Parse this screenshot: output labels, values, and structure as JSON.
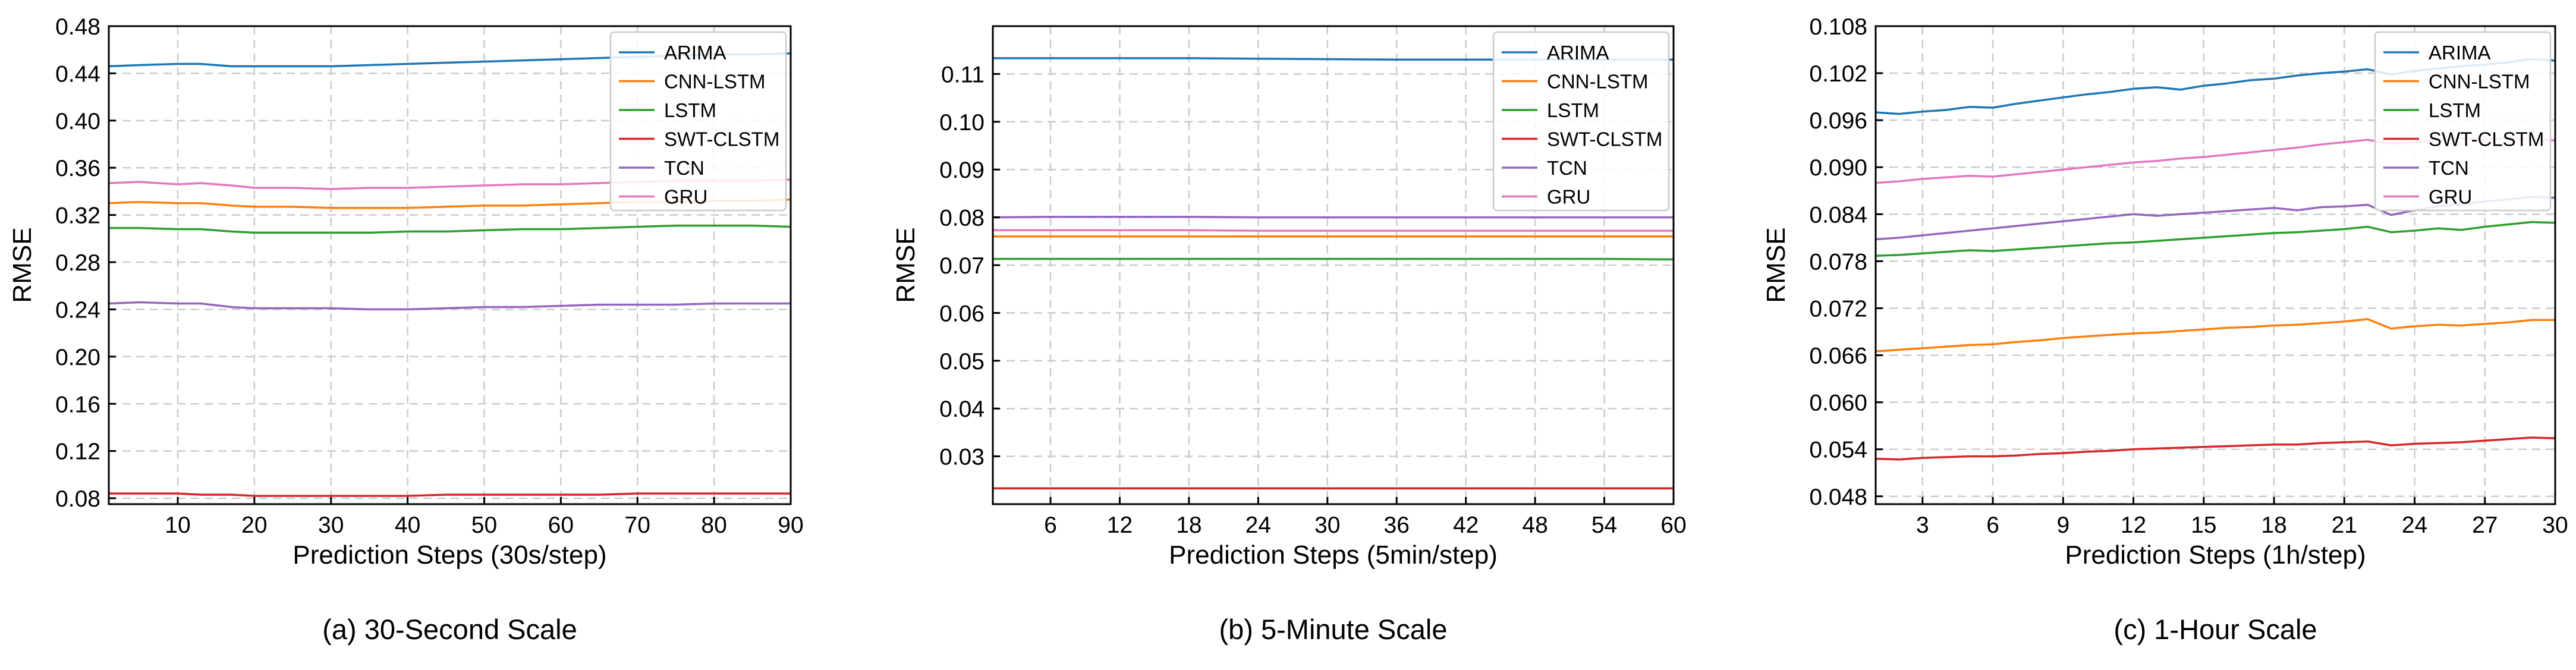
{
  "chart_data": [
    {
      "type": "line",
      "caption": "(a) 30-Second Scale",
      "xlabel": "Prediction Steps (30s/step)",
      "ylabel": "RMSE",
      "xlim": [
        1,
        90
      ],
      "ylim": [
        0.075,
        0.48
      ],
      "xticks": [
        10,
        20,
        30,
        40,
        50,
        60,
        70,
        80,
        90
      ],
      "yticks": [
        0.08,
        0.12,
        0.16,
        0.2,
        0.24,
        0.28,
        0.32,
        0.36,
        0.4,
        0.44,
        0.48
      ],
      "tick_labels_x": [
        "10",
        "20",
        "30",
        "40",
        "50",
        "60",
        "70",
        "80",
        "90"
      ],
      "tick_labels_y": [
        "0.08",
        "0.12",
        "0.16",
        "0.20",
        "0.24",
        "0.28",
        "0.32",
        "0.36",
        "0.40",
        "0.44",
        "0.48"
      ],
      "grid": true,
      "legend_position": "top-right",
      "series": [
        {
          "name": "ARIMA",
          "color": "#1f77b4",
          "x": [
            1,
            5,
            10,
            13,
            17,
            20,
            25,
            30,
            35,
            40,
            45,
            50,
            55,
            60,
            65,
            70,
            75,
            80,
            85,
            90
          ],
          "values": [
            0.446,
            0.447,
            0.448,
            0.448,
            0.446,
            0.446,
            0.446,
            0.446,
            0.447,
            0.448,
            0.449,
            0.45,
            0.451,
            0.452,
            0.453,
            0.454,
            0.455,
            0.456,
            0.456,
            0.457
          ]
        },
        {
          "name": "CNN-LSTM",
          "color": "#ff7f0e",
          "x": [
            1,
            5,
            10,
            13,
            17,
            20,
            25,
            30,
            35,
            40,
            45,
            50,
            55,
            60,
            65,
            70,
            75,
            80,
            85,
            90
          ],
          "values": [
            0.33,
            0.331,
            0.33,
            0.33,
            0.328,
            0.327,
            0.327,
            0.326,
            0.326,
            0.326,
            0.327,
            0.328,
            0.328,
            0.329,
            0.33,
            0.331,
            0.331,
            0.332,
            0.332,
            0.333
          ]
        },
        {
          "name": "LSTM",
          "color": "#2ca02c",
          "x": [
            1,
            5,
            10,
            13,
            17,
            20,
            25,
            30,
            35,
            40,
            45,
            50,
            55,
            60,
            65,
            70,
            75,
            80,
            85,
            90
          ],
          "values": [
            0.309,
            0.309,
            0.308,
            0.308,
            0.306,
            0.305,
            0.305,
            0.305,
            0.305,
            0.306,
            0.306,
            0.307,
            0.308,
            0.308,
            0.309,
            0.31,
            0.311,
            0.311,
            0.311,
            0.31
          ]
        },
        {
          "name": "SWT-CLSTM",
          "color": "#d62728",
          "x": [
            1,
            5,
            10,
            13,
            17,
            20,
            25,
            30,
            35,
            40,
            45,
            50,
            55,
            60,
            65,
            70,
            75,
            80,
            85,
            90
          ],
          "values": [
            0.084,
            0.084,
            0.084,
            0.083,
            0.083,
            0.082,
            0.082,
            0.082,
            0.082,
            0.082,
            0.083,
            0.083,
            0.083,
            0.083,
            0.083,
            0.084,
            0.084,
            0.084,
            0.084,
            0.084
          ]
        },
        {
          "name": "TCN",
          "color": "#9467bd",
          "x": [
            1,
            5,
            10,
            13,
            17,
            20,
            25,
            30,
            35,
            40,
            45,
            50,
            55,
            60,
            65,
            70,
            75,
            80,
            85,
            90
          ],
          "values": [
            0.245,
            0.246,
            0.245,
            0.245,
            0.242,
            0.241,
            0.241,
            0.241,
            0.24,
            0.24,
            0.241,
            0.242,
            0.242,
            0.243,
            0.244,
            0.244,
            0.244,
            0.245,
            0.245,
            0.245
          ]
        },
        {
          "name": "GRU",
          "color": "#e377c2",
          "x": [
            1,
            5,
            10,
            13,
            17,
            20,
            25,
            30,
            35,
            40,
            45,
            50,
            55,
            60,
            65,
            70,
            75,
            80,
            85,
            90
          ],
          "values": [
            0.347,
            0.348,
            0.346,
            0.347,
            0.345,
            0.343,
            0.343,
            0.342,
            0.343,
            0.343,
            0.344,
            0.345,
            0.346,
            0.346,
            0.347,
            0.348,
            0.349,
            0.349,
            0.349,
            0.35
          ]
        }
      ]
    },
    {
      "type": "line",
      "caption": "(b) 5-Minute Scale",
      "xlabel": "Prediction Steps (5min/step)",
      "ylabel": "RMSE",
      "xlim": [
        1,
        60
      ],
      "ylim": [
        0.02,
        0.12
      ],
      "xticks": [
        6,
        12,
        18,
        24,
        30,
        36,
        42,
        48,
        54,
        60
      ],
      "yticks": [
        0.03,
        0.04,
        0.05,
        0.06,
        0.07,
        0.08,
        0.09,
        0.1,
        0.11
      ],
      "tick_labels_x": [
        "6",
        "12",
        "18",
        "24",
        "30",
        "36",
        "42",
        "48",
        "54",
        "60"
      ],
      "tick_labels_y": [
        "0.03",
        "0.04",
        "0.05",
        "0.06",
        "0.07",
        "0.08",
        "0.09",
        "0.10",
        "0.11"
      ],
      "grid": true,
      "legend_position": "top-right",
      "series": [
        {
          "name": "ARIMA",
          "color": "#1f77b4",
          "x": [
            1,
            6,
            12,
            18,
            24,
            30,
            36,
            42,
            48,
            54,
            60
          ],
          "values": [
            0.1133,
            0.1133,
            0.1133,
            0.1133,
            0.1132,
            0.1131,
            0.113,
            0.113,
            0.113,
            0.113,
            0.113
          ]
        },
        {
          "name": "CNN-LSTM",
          "color": "#ff7f0e",
          "x": [
            1,
            6,
            12,
            18,
            24,
            30,
            36,
            42,
            48,
            54,
            60
          ],
          "values": [
            0.076,
            0.076,
            0.076,
            0.076,
            0.076,
            0.076,
            0.076,
            0.076,
            0.076,
            0.076,
            0.076
          ]
        },
        {
          "name": "LSTM",
          "color": "#2ca02c",
          "x": [
            1,
            6,
            12,
            18,
            24,
            30,
            36,
            42,
            48,
            54,
            60
          ],
          "values": [
            0.0713,
            0.0713,
            0.0713,
            0.0713,
            0.0713,
            0.0713,
            0.0713,
            0.0713,
            0.0713,
            0.0713,
            0.0712
          ]
        },
        {
          "name": "SWT-CLSTM",
          "color": "#d62728",
          "x": [
            1,
            6,
            12,
            18,
            24,
            30,
            36,
            42,
            48,
            54,
            60
          ],
          "values": [
            0.0233,
            0.0233,
            0.0233,
            0.0233,
            0.0233,
            0.0233,
            0.0233,
            0.0233,
            0.0233,
            0.0233,
            0.0233
          ]
        },
        {
          "name": "TCN",
          "color": "#9467bd",
          "x": [
            1,
            6,
            12,
            18,
            24,
            30,
            36,
            42,
            48,
            54,
            60
          ],
          "values": [
            0.08,
            0.0801,
            0.0801,
            0.0801,
            0.08,
            0.08,
            0.08,
            0.08,
            0.08,
            0.08,
            0.08
          ]
        },
        {
          "name": "GRU",
          "color": "#e377c2",
          "x": [
            1,
            6,
            12,
            18,
            24,
            30,
            36,
            42,
            48,
            54,
            60
          ],
          "values": [
            0.0773,
            0.0773,
            0.0773,
            0.0773,
            0.0772,
            0.0772,
            0.0772,
            0.0772,
            0.0772,
            0.0772,
            0.0772
          ]
        }
      ]
    },
    {
      "type": "line",
      "caption": "(c) 1-Hour Scale",
      "xlabel": "Prediction Steps (1h/step)",
      "ylabel": "RMSE",
      "xlim": [
        1,
        30
      ],
      "ylim": [
        0.047,
        0.108
      ],
      "xticks": [
        3,
        6,
        9,
        12,
        15,
        18,
        21,
        24,
        27,
        30
      ],
      "yticks": [
        0.048,
        0.054,
        0.06,
        0.066,
        0.072,
        0.078,
        0.084,
        0.09,
        0.096,
        0.102,
        0.108
      ],
      "tick_labels_x": [
        "3",
        "6",
        "9",
        "12",
        "15",
        "18",
        "21",
        "24",
        "27",
        "30"
      ],
      "tick_labels_y": [
        "0.048",
        "0.054",
        "0.060",
        "0.066",
        "0.072",
        "0.078",
        "0.084",
        "0.090",
        "0.096",
        "0.102",
        "0.108"
      ],
      "grid": true,
      "legend_position": "top-right",
      "series": [
        {
          "name": "ARIMA",
          "color": "#1f77b4",
          "x": [
            1,
            2,
            3,
            4,
            5,
            6,
            7,
            8,
            9,
            10,
            11,
            12,
            13,
            14,
            15,
            16,
            17,
            18,
            19,
            20,
            21,
            22,
            23,
            24,
            25,
            26,
            27,
            28,
            29,
            30
          ],
          "values": [
            0.097,
            0.0968,
            0.0971,
            0.0973,
            0.0977,
            0.0976,
            0.0981,
            0.0985,
            0.0989,
            0.0993,
            0.0996,
            0.1,
            0.1002,
            0.0999,
            0.1004,
            0.1007,
            0.1011,
            0.1013,
            0.1017,
            0.102,
            0.1022,
            0.1025,
            0.1018,
            0.1023,
            0.1026,
            0.1029,
            0.1031,
            0.1034,
            0.1038,
            0.1036
          ]
        },
        {
          "name": "CNN-LSTM",
          "color": "#ff7f0e",
          "x": [
            1,
            2,
            3,
            4,
            5,
            6,
            7,
            8,
            9,
            10,
            11,
            12,
            13,
            14,
            15,
            16,
            17,
            18,
            19,
            20,
            21,
            22,
            23,
            24,
            25,
            26,
            27,
            28,
            29,
            30
          ],
          "values": [
            0.0665,
            0.0667,
            0.0669,
            0.0671,
            0.0673,
            0.0674,
            0.0677,
            0.0679,
            0.0682,
            0.0684,
            0.0686,
            0.0688,
            0.0689,
            0.0691,
            0.0693,
            0.0695,
            0.0696,
            0.0698,
            0.0699,
            0.0701,
            0.0703,
            0.0706,
            0.0694,
            0.0697,
            0.0699,
            0.0698,
            0.07,
            0.0702,
            0.0705,
            0.0705
          ]
        },
        {
          "name": "LSTM",
          "color": "#2ca02c",
          "x": [
            1,
            2,
            3,
            4,
            5,
            6,
            7,
            8,
            9,
            10,
            11,
            12,
            13,
            14,
            15,
            16,
            17,
            18,
            19,
            20,
            21,
            22,
            23,
            24,
            25,
            26,
            27,
            28,
            29,
            30
          ],
          "values": [
            0.0787,
            0.0788,
            0.079,
            0.0792,
            0.0794,
            0.0793,
            0.0795,
            0.0797,
            0.0799,
            0.0801,
            0.0803,
            0.0804,
            0.0806,
            0.0808,
            0.081,
            0.0812,
            0.0814,
            0.0816,
            0.0817,
            0.0819,
            0.0821,
            0.0824,
            0.0817,
            0.0819,
            0.0822,
            0.082,
            0.0824,
            0.0827,
            0.083,
            0.0829
          ]
        },
        {
          "name": "SWT-CLSTM",
          "color": "#d62728",
          "x": [
            1,
            2,
            3,
            4,
            5,
            6,
            7,
            8,
            9,
            10,
            11,
            12,
            13,
            14,
            15,
            16,
            17,
            18,
            19,
            20,
            21,
            22,
            23,
            24,
            25,
            26,
            27,
            28,
            29,
            30
          ],
          "values": [
            0.0528,
            0.0527,
            0.0529,
            0.053,
            0.0531,
            0.0531,
            0.0532,
            0.0534,
            0.0535,
            0.0537,
            0.0538,
            0.054,
            0.0541,
            0.0542,
            0.0543,
            0.0544,
            0.0545,
            0.0546,
            0.0546,
            0.0548,
            0.0549,
            0.055,
            0.0545,
            0.0547,
            0.0548,
            0.0549,
            0.0551,
            0.0553,
            0.0555,
            0.0554
          ]
        },
        {
          "name": "TCN",
          "color": "#9467bd",
          "x": [
            1,
            2,
            3,
            4,
            5,
            6,
            7,
            8,
            9,
            10,
            11,
            12,
            13,
            14,
            15,
            16,
            17,
            18,
            19,
            20,
            21,
            22,
            23,
            24,
            25,
            26,
            27,
            28,
            29,
            30
          ],
          "values": [
            0.0808,
            0.081,
            0.0813,
            0.0816,
            0.0819,
            0.0822,
            0.0825,
            0.0828,
            0.0831,
            0.0834,
            0.0837,
            0.084,
            0.0838,
            0.084,
            0.0842,
            0.0844,
            0.0846,
            0.0848,
            0.0845,
            0.0849,
            0.085,
            0.0852,
            0.0839,
            0.0845,
            0.085,
            0.0853,
            0.0856,
            0.0859,
            0.0862,
            0.0861
          ]
        },
        {
          "name": "GRU",
          "color": "#e377c2",
          "x": [
            1,
            2,
            3,
            4,
            5,
            6,
            7,
            8,
            9,
            10,
            11,
            12,
            13,
            14,
            15,
            16,
            17,
            18,
            19,
            20,
            21,
            22,
            23,
            24,
            25,
            26,
            27,
            28,
            29,
            30
          ],
          "values": [
            0.088,
            0.0882,
            0.0885,
            0.0887,
            0.0889,
            0.0888,
            0.0891,
            0.0894,
            0.0897,
            0.09,
            0.0903,
            0.0906,
            0.0908,
            0.0911,
            0.0913,
            0.0916,
            0.0919,
            0.0922,
            0.0925,
            0.0929,
            0.0932,
            0.0935,
            0.093,
            0.0932,
            0.0935,
            0.0937,
            0.0935,
            0.0937,
            0.0936,
            0.0934
          ]
        }
      ]
    }
  ]
}
